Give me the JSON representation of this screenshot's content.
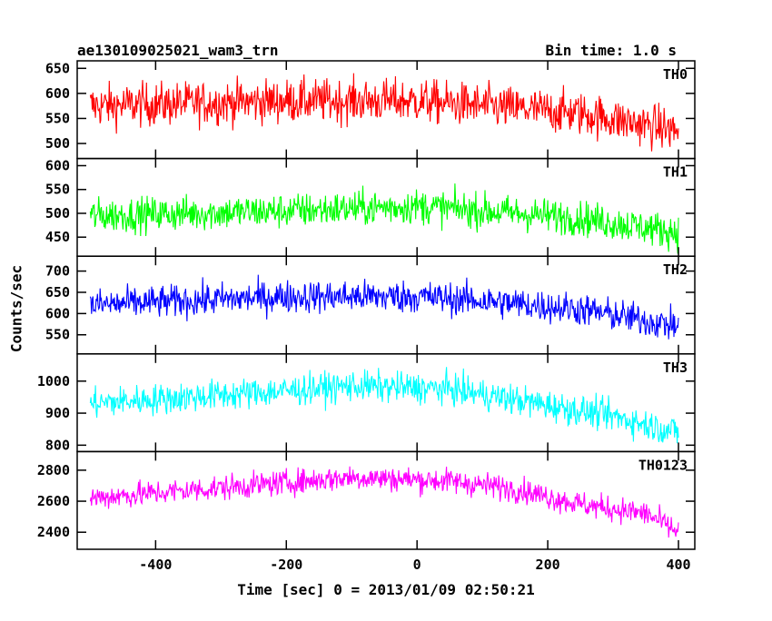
{
  "chart_data": {
    "type": "line",
    "title": "ae130109025021_wam3_trn",
    "subtitle": "Bin time: 1.0 s",
    "xlabel": "Time [sec] 0 = 2013/01/09 02:50:21",
    "ylabel": "Counts/sec",
    "xlim": [
      -520,
      425
    ],
    "x_ticks": [
      -400,
      -200,
      0,
      200,
      400
    ],
    "bin_time_s": 1.0,
    "x_start": -500,
    "x_end": 400,
    "panels": [
      {
        "name": "TH0",
        "color": "#ff0000",
        "ylim": [
          470,
          665
        ],
        "yticks": [
          500,
          550,
          600,
          650
        ],
        "trend": [
          [
            -500,
            575
          ],
          [
            -200,
            585
          ],
          [
            0,
            585
          ],
          [
            100,
            575
          ],
          [
            250,
            560
          ],
          [
            400,
            525
          ]
        ],
        "noise": 45
      },
      {
        "name": "TH1",
        "color": "#00ff00",
        "ylim": [
          410,
          615
        ],
        "yticks": [
          450,
          500,
          550,
          600
        ],
        "trend": [
          [
            -500,
            495
          ],
          [
            -200,
            505
          ],
          [
            0,
            515
          ],
          [
            100,
            505
          ],
          [
            250,
            490
          ],
          [
            400,
            460
          ]
        ],
        "noise": 38
      },
      {
        "name": "TH2",
        "color": "#0000ff",
        "ylim": [
          505,
          735
        ],
        "yticks": [
          550,
          600,
          650,
          700
        ],
        "trend": [
          [
            -500,
            620
          ],
          [
            -200,
            640
          ],
          [
            0,
            640
          ],
          [
            100,
            630
          ],
          [
            250,
            610
          ],
          [
            400,
            570
          ]
        ],
        "noise": 40
      },
      {
        "name": "TH3",
        "color": "#00ffff",
        "ylim": [
          780,
          1085
        ],
        "yticks": [
          800,
          900,
          1000
        ],
        "trend": [
          [
            -500,
            930
          ],
          [
            -200,
            970
          ],
          [
            -100,
            985
          ],
          [
            50,
            975
          ],
          [
            200,
            925
          ],
          [
            300,
            890
          ],
          [
            400,
            840
          ]
        ],
        "noise": 50
      },
      {
        "name": "TH0123",
        "color": "#ff00ff",
        "ylim": [
          2290,
          2920
        ],
        "yticks": [
          2400,
          2600,
          2800
        ],
        "trend": [
          [
            -500,
            2620
          ],
          [
            -200,
            2720
          ],
          [
            -100,
            2755
          ],
          [
            50,
            2730
          ],
          [
            150,
            2680
          ],
          [
            250,
            2580
          ],
          [
            350,
            2520
          ],
          [
            400,
            2400
          ]
        ],
        "noise": 85
      }
    ]
  }
}
